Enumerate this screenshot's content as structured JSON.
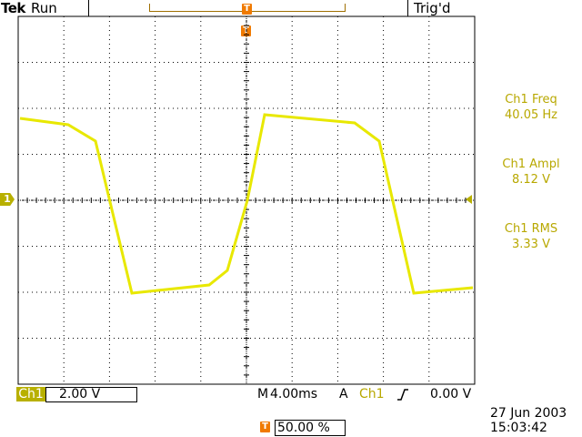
{
  "header": {
    "brand": "Tek",
    "status": "Run",
    "trigger_state": "Trig'd"
  },
  "markers": {
    "trigger_position_icon": "T",
    "channel_indicator": "1"
  },
  "measurements": [
    {
      "label": "Ch1 Freq",
      "value": "40.05 Hz"
    },
    {
      "label": "Ch1 Ampl",
      "value": "8.12 V"
    },
    {
      "label": "Ch1 RMS",
      "value": "3.33 V"
    }
  ],
  "footer": {
    "channel": "Ch1",
    "volts_per_div": "2.00 V",
    "timebase_prefix": "M",
    "timebase": "4.00ms",
    "trigger_mode": "A",
    "trigger_source": "Ch1",
    "trigger_level": "0.00 V",
    "trigger_position": "50.00 %",
    "date": "27 Jun  2003",
    "time": "15:03:42"
  },
  "colors": {
    "trace": "#e8e800",
    "channel": "#b8b000",
    "trigger_marker": "#f07a00",
    "grid": "#000000"
  },
  "grid": {
    "h_divisions": 10,
    "v_divisions": 8
  }
}
